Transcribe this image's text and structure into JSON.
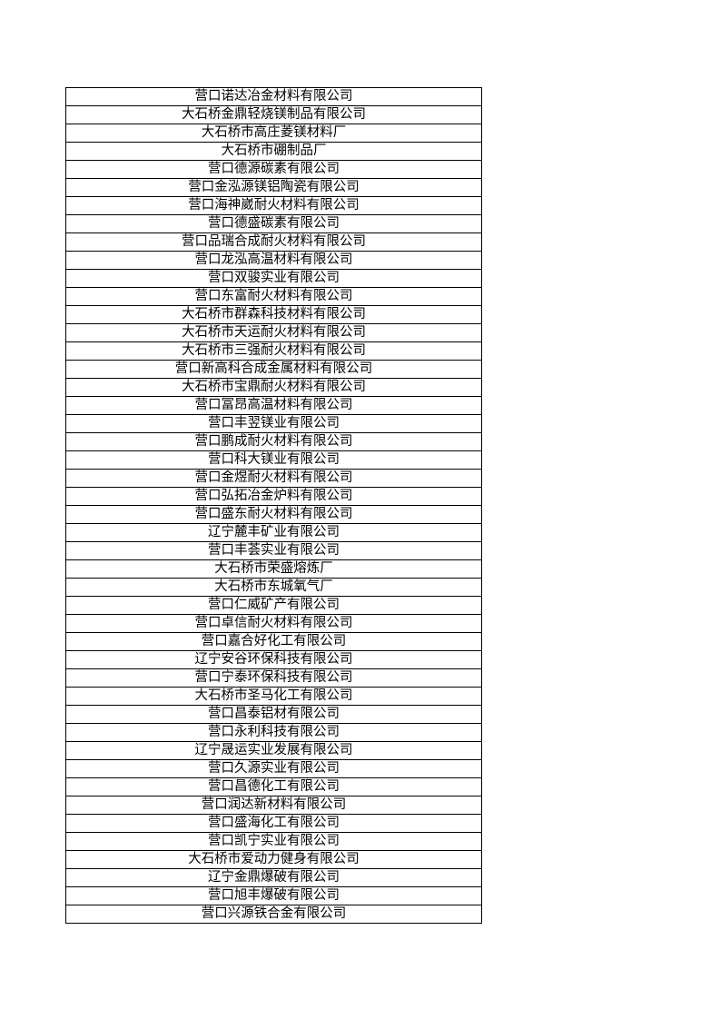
{
  "companies": [
    "营口诺达冶金材料有限公司",
    "大石桥金鼎轻烧镁制品有限公司",
    "大石桥市高庄菱镁材料厂",
    "大石桥市硼制品厂",
    "营口德源碳素有限公司",
    "营口金泓源镁铝陶瓷有限公司",
    "营口海神崴耐火材料有限公司",
    "营口德盛碳素有限公司",
    "营口品瑞合成耐火材料有限公司",
    "营口龙泓高温材料有限公司",
    "营口双骏实业有限公司",
    "营口东富耐火材料有限公司",
    "大石桥市群森科技材料有限公司",
    "大石桥市天运耐火材料有限公司",
    "大石桥市三强耐火材料有限公司",
    "营口新高科合成金属材料有限公司",
    "大石桥市宝鼎耐火材料有限公司",
    "营口冨昂高温材料有限公司",
    "营口丰翌镁业有限公司",
    "营口鹏成耐火材料有限公司",
    "营口科大镁业有限公司",
    "营口金煜耐火材料有限公司",
    "营口弘拓冶金炉料有限公司",
    "营口盛东耐火材料有限公司",
    "辽宁麓丰矿业有限公司",
    "营口丰荟实业有限公司",
    "大石桥市荣盛熔炼厂",
    "大石桥市东城氧气厂",
    "营口仁威矿产有限公司",
    "营口卓信耐火材料有限公司",
    "营口嘉合好化工有限公司",
    "辽宁安谷环保科技有限公司",
    "营口宁泰环保科技有限公司",
    "大石桥市圣马化工有限公司",
    "营口昌泰铝材有限公司",
    "营口永利科技有限公司",
    "辽宁晟运实业发展有限公司",
    "营口久源实业有限公司",
    "营口昌德化工有限公司",
    "营口润达新材料有限公司",
    "营口盛海化工有限公司",
    "营口凯宁实业有限公司",
    "大石桥市爱动力健身有限公司",
    "辽宁金鼎爆破有限公司",
    "营口旭丰爆破有限公司",
    "营口兴源铁合金有限公司"
  ]
}
